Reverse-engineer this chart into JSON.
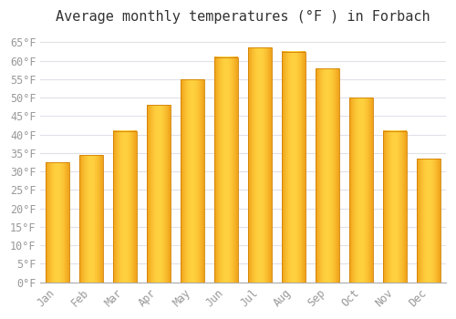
{
  "title": "Average monthly temperatures (°F ) in Forbach",
  "months": [
    "Jan",
    "Feb",
    "Mar",
    "Apr",
    "May",
    "Jun",
    "Jul",
    "Aug",
    "Sep",
    "Oct",
    "Nov",
    "Dec"
  ],
  "values": [
    32.5,
    34.5,
    41.0,
    48.0,
    55.0,
    61.0,
    63.5,
    62.5,
    58.0,
    50.0,
    41.0,
    33.5
  ],
  "bar_color_center": "#FFD040",
  "bar_color_edge": "#F0A000",
  "background_color": "#FFFFFF",
  "grid_color": "#E0E0E8",
  "ylim": [
    0,
    68
  ],
  "ytick_step": 5,
  "title_fontsize": 11,
  "tick_fontsize": 8.5,
  "tick_label_color": "#999999",
  "font_family": "monospace"
}
